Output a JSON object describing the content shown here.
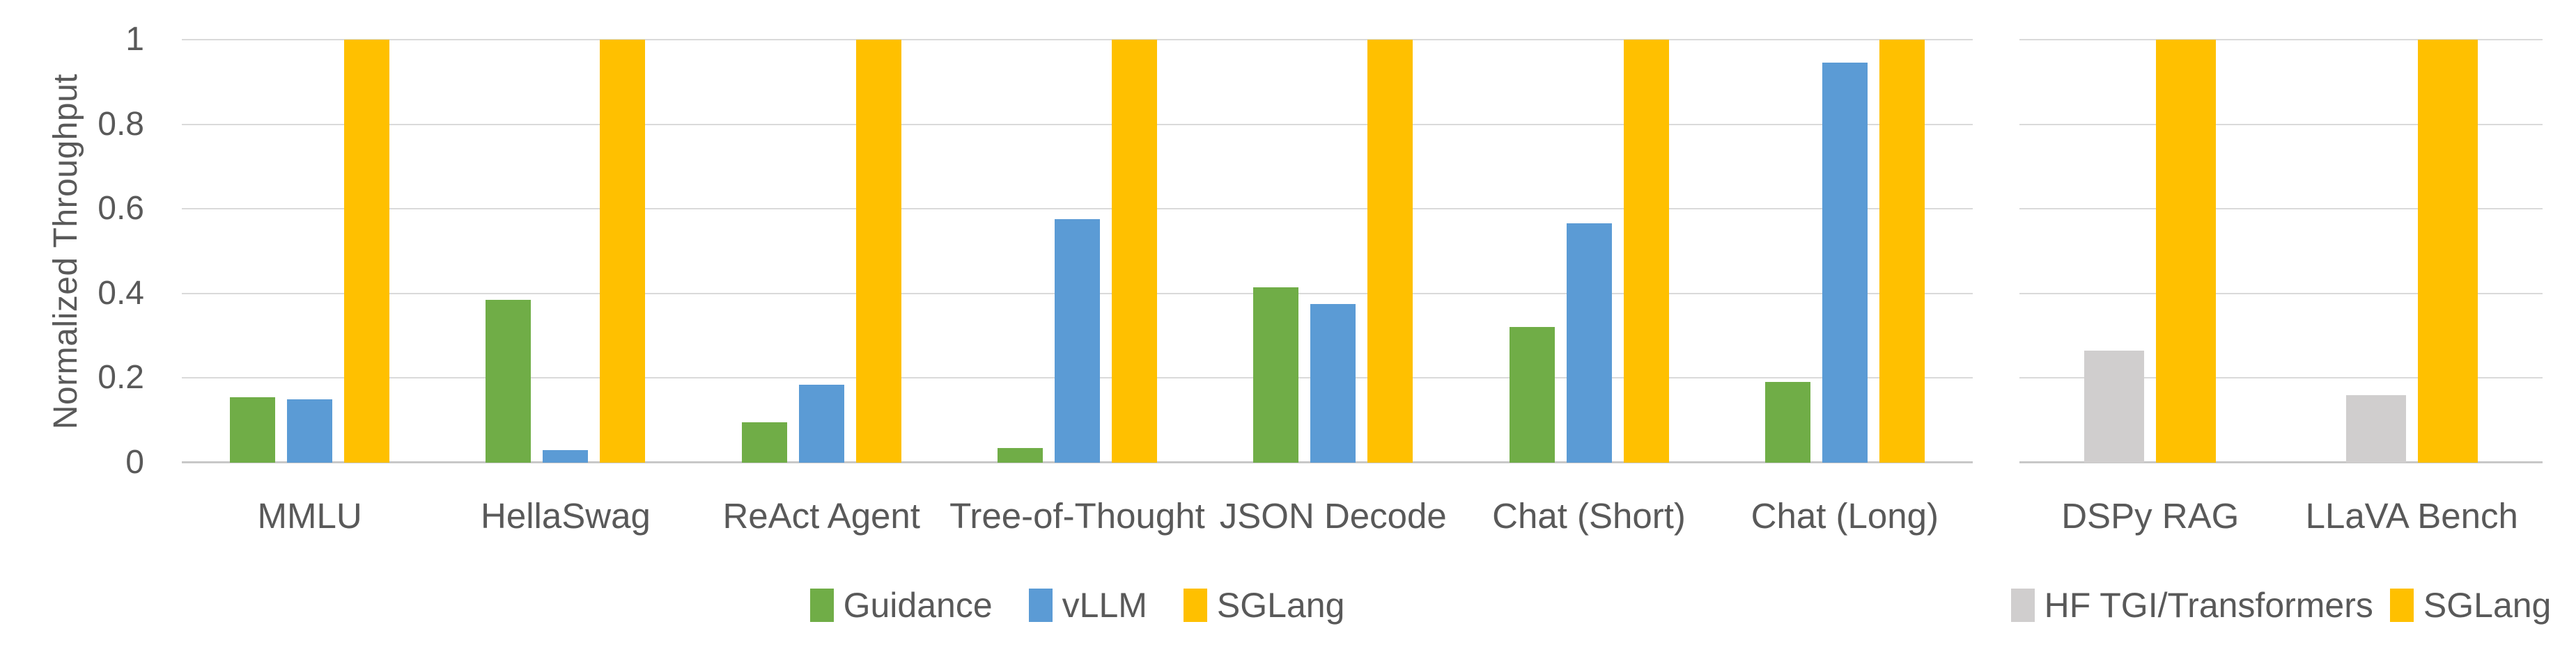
{
  "figure": {
    "background_color": "#FFFFFF",
    "text_color": "#595959",
    "gridline_color": "#DADADA",
    "axis_line_color": "#C8C8C8"
  },
  "y_axis": {
    "title": "Normalized Throughput",
    "ticks": [
      {
        "value": 1,
        "label": "1"
      },
      {
        "value": 0.8,
        "label": "0.8"
      },
      {
        "value": 0.6,
        "label": "0.6"
      },
      {
        "value": 0.4,
        "label": "0.4"
      },
      {
        "value": 0.2,
        "label": "0.2"
      },
      {
        "value": 0,
        "label": "0"
      }
    ]
  },
  "chart_data": [
    {
      "type": "bar",
      "title": "",
      "xlabel": "",
      "ylabel": "Normalized Throughput",
      "ylim": [
        0,
        1
      ],
      "grid": true,
      "legend_position": "bottom",
      "categories": [
        "MMLU",
        "HellaSwag",
        "ReAct Agent",
        "Tree-of-Thought",
        "JSON Decode",
        "Chat (Short)",
        "Chat (Long)"
      ],
      "series": [
        {
          "name": "Guidance",
          "color": "#70AD47",
          "values": [
            0.155,
            0.385,
            0.095,
            0.035,
            0.415,
            0.32,
            0.19
          ]
        },
        {
          "name": "vLLM",
          "color": "#5B9BD5",
          "values": [
            0.15,
            0.03,
            0.185,
            0.575,
            0.375,
            0.565,
            0.945
          ]
        },
        {
          "name": "SGLang",
          "color": "#FFC000",
          "values": [
            1,
            1,
            1,
            1,
            1,
            1,
            1
          ]
        }
      ]
    },
    {
      "type": "bar",
      "title": "",
      "xlabel": "",
      "ylabel": "",
      "ylim": [
        0,
        1
      ],
      "grid": true,
      "legend_position": "bottom",
      "categories": [
        "DSPy RAG",
        "LLaVA Bench"
      ],
      "series": [
        {
          "name": "HF TGI/Transformers",
          "color": "#D0CECE",
          "values": [
            0.265,
            0.16
          ]
        },
        {
          "name": "SGLang",
          "color": "#FFC000",
          "values": [
            1,
            1
          ]
        }
      ]
    }
  ]
}
